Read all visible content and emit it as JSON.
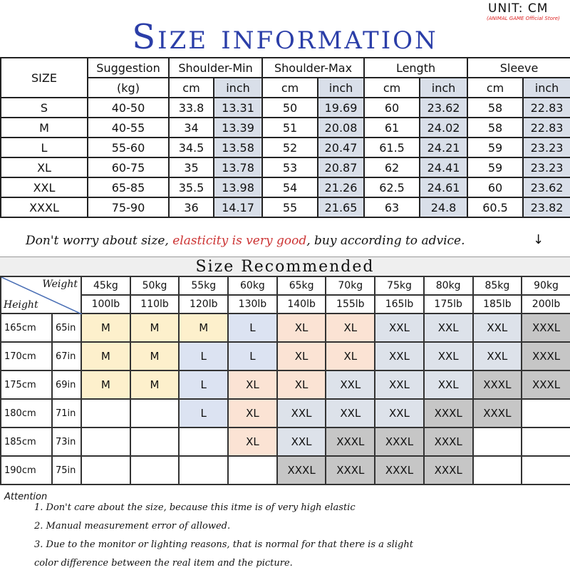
{
  "unit_label": "UNIT: CM",
  "store_label": "(ANIMAL GAME Official Store)",
  "title": "Size information",
  "size_table": {
    "size_header": "SIZE",
    "suggestion_header": "Suggestion",
    "suggestion_unit": "(kg)",
    "groups": [
      "Shoulder-Min",
      "Shoulder-Max",
      "Length",
      "Sleeve"
    ],
    "cm": "cm",
    "inch": "inch",
    "rows": [
      [
        "S",
        "40-50",
        "33.8",
        "13.31",
        "50",
        "19.69",
        "60",
        "23.62",
        "58",
        "22.83"
      ],
      [
        "M",
        "40-55",
        "34",
        "13.39",
        "51",
        "20.08",
        "61",
        "24.02",
        "58",
        "22.83"
      ],
      [
        "L",
        "55-60",
        "34.5",
        "13.58",
        "52",
        "20.47",
        "61.5",
        "24.21",
        "59",
        "23.23"
      ],
      [
        "XL",
        "60-75",
        "35",
        "13.78",
        "53",
        "20.87",
        "62",
        "24.41",
        "59",
        "23.23"
      ],
      [
        "XXL",
        "65-85",
        "35.5",
        "13.98",
        "54",
        "21.26",
        "62.5",
        "24.61",
        "60",
        "23.62"
      ],
      [
        "XXXL",
        "75-90",
        "36",
        "14.17",
        "55",
        "21.65",
        "63",
        "24.8",
        "60.5",
        "23.82"
      ]
    ]
  },
  "advice": {
    "part1": "Don't worry about size, ",
    "part2": "elasticity is very good",
    "part3": ", buy according to advice.",
    "arrow": "↓"
  },
  "recommend": {
    "title": "Size Recommended",
    "weight_label": "Weight",
    "height_label": "Height",
    "kg": [
      "45kg",
      "50kg",
      "55kg",
      "60kg",
      "65kg",
      "70kg",
      "75kg",
      "80kg",
      "85kg",
      "90kg"
    ],
    "lb": [
      "100lb",
      "110lb",
      "120lb",
      "130lb",
      "140lb",
      "155lb",
      "165lb",
      "175lb",
      "185lb",
      "200lb"
    ],
    "rows": [
      {
        "cm": "165cm",
        "in": "65in",
        "sizes": [
          "M",
          "M",
          "M",
          "L",
          "XL",
          "XL",
          "XXL",
          "XXL",
          "XXL",
          "XXXL"
        ]
      },
      {
        "cm": "170cm",
        "in": "67in",
        "sizes": [
          "M",
          "M",
          "L",
          "L",
          "XL",
          "XL",
          "XXL",
          "XXL",
          "XXL",
          "XXXL"
        ]
      },
      {
        "cm": "175cm",
        "in": "69in",
        "sizes": [
          "M",
          "M",
          "L",
          "XL",
          "XL",
          "XXL",
          "XXL",
          "XXL",
          "XXXL",
          "XXXL"
        ]
      },
      {
        "cm": "180cm",
        "in": "71in",
        "sizes": [
          "",
          "",
          "L",
          "XL",
          "XXL",
          "XXL",
          "XXL",
          "XXXL",
          "XXXL",
          ""
        ]
      },
      {
        "cm": "185cm",
        "in": "73in",
        "sizes": [
          "",
          "",
          "",
          "XL",
          "XXL",
          "XXXL",
          "XXXL",
          "XXXL",
          "",
          ""
        ]
      },
      {
        "cm": "190cm",
        "in": "75in",
        "sizes": [
          "",
          "",
          "",
          "",
          "XXXL",
          "XXXL",
          "XXXL",
          "XXXL",
          "",
          ""
        ]
      }
    ],
    "colors": {
      "M": "#fdf0cc",
      "L": "#dce3f2",
      "XL": "#fbe3d4",
      "XXL": "#dde2ea",
      "XXXL": "#c6c6c6"
    }
  },
  "attention": {
    "title": "Attention",
    "notes": [
      "1. Don't care about the size, because this itme is of very high elastic",
      "2. Manual measurement error of allowed.",
      "3.  Due to the monitor or lighting reasons, that is normal for that there is a slight",
      "color difference between the real item and the picture."
    ]
  }
}
